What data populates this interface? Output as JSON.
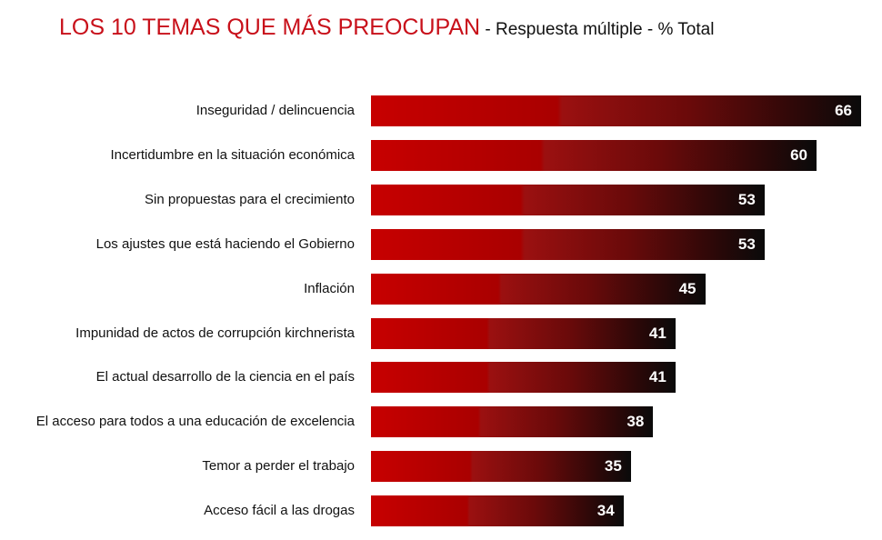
{
  "title": {
    "main": "LOS 10 TEMAS QUE MÁS PREOCUPAN",
    "sub": " - Respuesta múltiple - % Total"
  },
  "colors": {
    "title": "#c8101a",
    "bar_start": "#c70000",
    "bar_end": "#0a0a0a",
    "value_text": "#ffffff"
  },
  "chart_data": {
    "type": "bar",
    "orientation": "horizontal",
    "title": "LOS 10 TEMAS QUE MÁS PREOCUPAN - Respuesta múltiple - % Total",
    "categories": [
      "Inseguridad / delincuencia",
      "Incertidumbre en la situación económica",
      "Sin propuestas para el crecimiento",
      "Los ajustes que está haciendo el Gobierno",
      "Inflación",
      "Impunidad de actos de corrupción kirchnerista",
      "El actual desarrollo de la ciencia en el país",
      "El acceso para todos a una educación de excelencia",
      "Temor a perder el trabajo",
      "Acceso fácil a las drogas"
    ],
    "values": [
      66,
      60,
      53,
      53,
      45,
      41,
      41,
      38,
      35,
      34
    ],
    "xlim": [
      0,
      66
    ],
    "grid": false
  }
}
